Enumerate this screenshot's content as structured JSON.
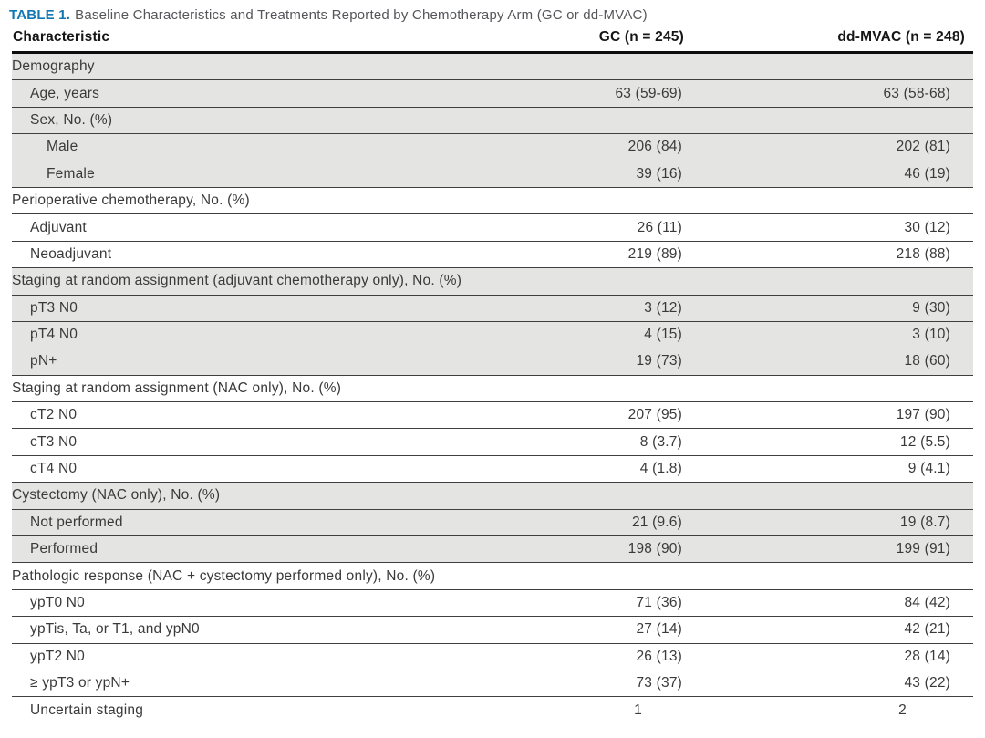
{
  "caption": {
    "label": "TABLE 1.",
    "text": "Baseline Characteristics and Treatments Reported by Chemotherapy Arm (GC or dd-MVAC)"
  },
  "columns": {
    "characteristic": "Characteristic",
    "gc": "GC (n = 245)",
    "ddmvac": "dd-MVAC (n = 248)"
  },
  "rows": [
    {
      "label": "Demography",
      "gc": "",
      "ddmvac": ""
    },
    {
      "label": "Age, years",
      "gc": "63 (59-69)",
      "ddmvac": "63 (58-68)"
    },
    {
      "label": "Sex, No. (%)",
      "gc": "",
      "ddmvac": ""
    },
    {
      "label": "Male",
      "gc": "206 (84)",
      "ddmvac": "202 (81)"
    },
    {
      "label": "Female",
      "gc": "39 (16)",
      "ddmvac": "46 (19)"
    },
    {
      "label": "Perioperative chemotherapy, No. (%)",
      "gc": "",
      "ddmvac": ""
    },
    {
      "label": "Adjuvant",
      "gc": "26 (11)",
      "ddmvac": "30 (12)"
    },
    {
      "label": "Neoadjuvant",
      "gc": "219 (89)",
      "ddmvac": "218 (88)"
    },
    {
      "label": "Staging at random assignment (adjuvant chemotherapy only), No. (%)",
      "gc": "",
      "ddmvac": ""
    },
    {
      "label": "pT3 N0",
      "gc": "3 (12)",
      "ddmvac": "9 (30)"
    },
    {
      "label": "pT4 N0",
      "gc": "4 (15)",
      "ddmvac": "3 (10)"
    },
    {
      "label": "pN+",
      "gc": "19 (73)",
      "ddmvac": "18 (60)"
    },
    {
      "label": "Staging at random assignment (NAC only), No. (%)",
      "gc": "",
      "ddmvac": ""
    },
    {
      "label": "cT2 N0",
      "gc": "207 (95)",
      "ddmvac": "197 (90)"
    },
    {
      "label": "cT3 N0",
      "gc": "8 (3.7)",
      "ddmvac": "12 (5.5)"
    },
    {
      "label": "cT4 N0",
      "gc": "4 (1.8)",
      "ddmvac": "9 (4.1)"
    },
    {
      "label": "Cystectomy (NAC only), No. (%)",
      "gc": "",
      "ddmvac": ""
    },
    {
      "label": "Not performed",
      "gc": "21 (9.6)",
      "ddmvac": "19 (8.7)"
    },
    {
      "label": "Performed",
      "gc": "198 (90)",
      "ddmvac": "199 (91)"
    },
    {
      "label": "Pathologic response (NAC + cystectomy performed only), No. (%)",
      "gc": "",
      "ddmvac": ""
    },
    {
      "label": "ypT0 N0",
      "gc": "71 (36)",
      "ddmvac": "84 (42)"
    },
    {
      "label": "ypTis, Ta, or T1, and ypN0",
      "gc": "27 (14)",
      "ddmvac": "42 (21)"
    },
    {
      "label": "ypT2 N0",
      "gc": "26 (13)",
      "ddmvac": "28 (14)"
    },
    {
      "label": "≥ ypT3 or ypN+",
      "gc": "73 (37)",
      "ddmvac": "43 (22)"
    },
    {
      "label": "Uncertain staging",
      "gc": "1",
      "ddmvac": "2"
    }
  ],
  "colors": {
    "accent_blue": "#1277b2",
    "row_shade": "#e4e4e2",
    "body_text": "#3a3a3a",
    "caption_text": "#55565a"
  }
}
